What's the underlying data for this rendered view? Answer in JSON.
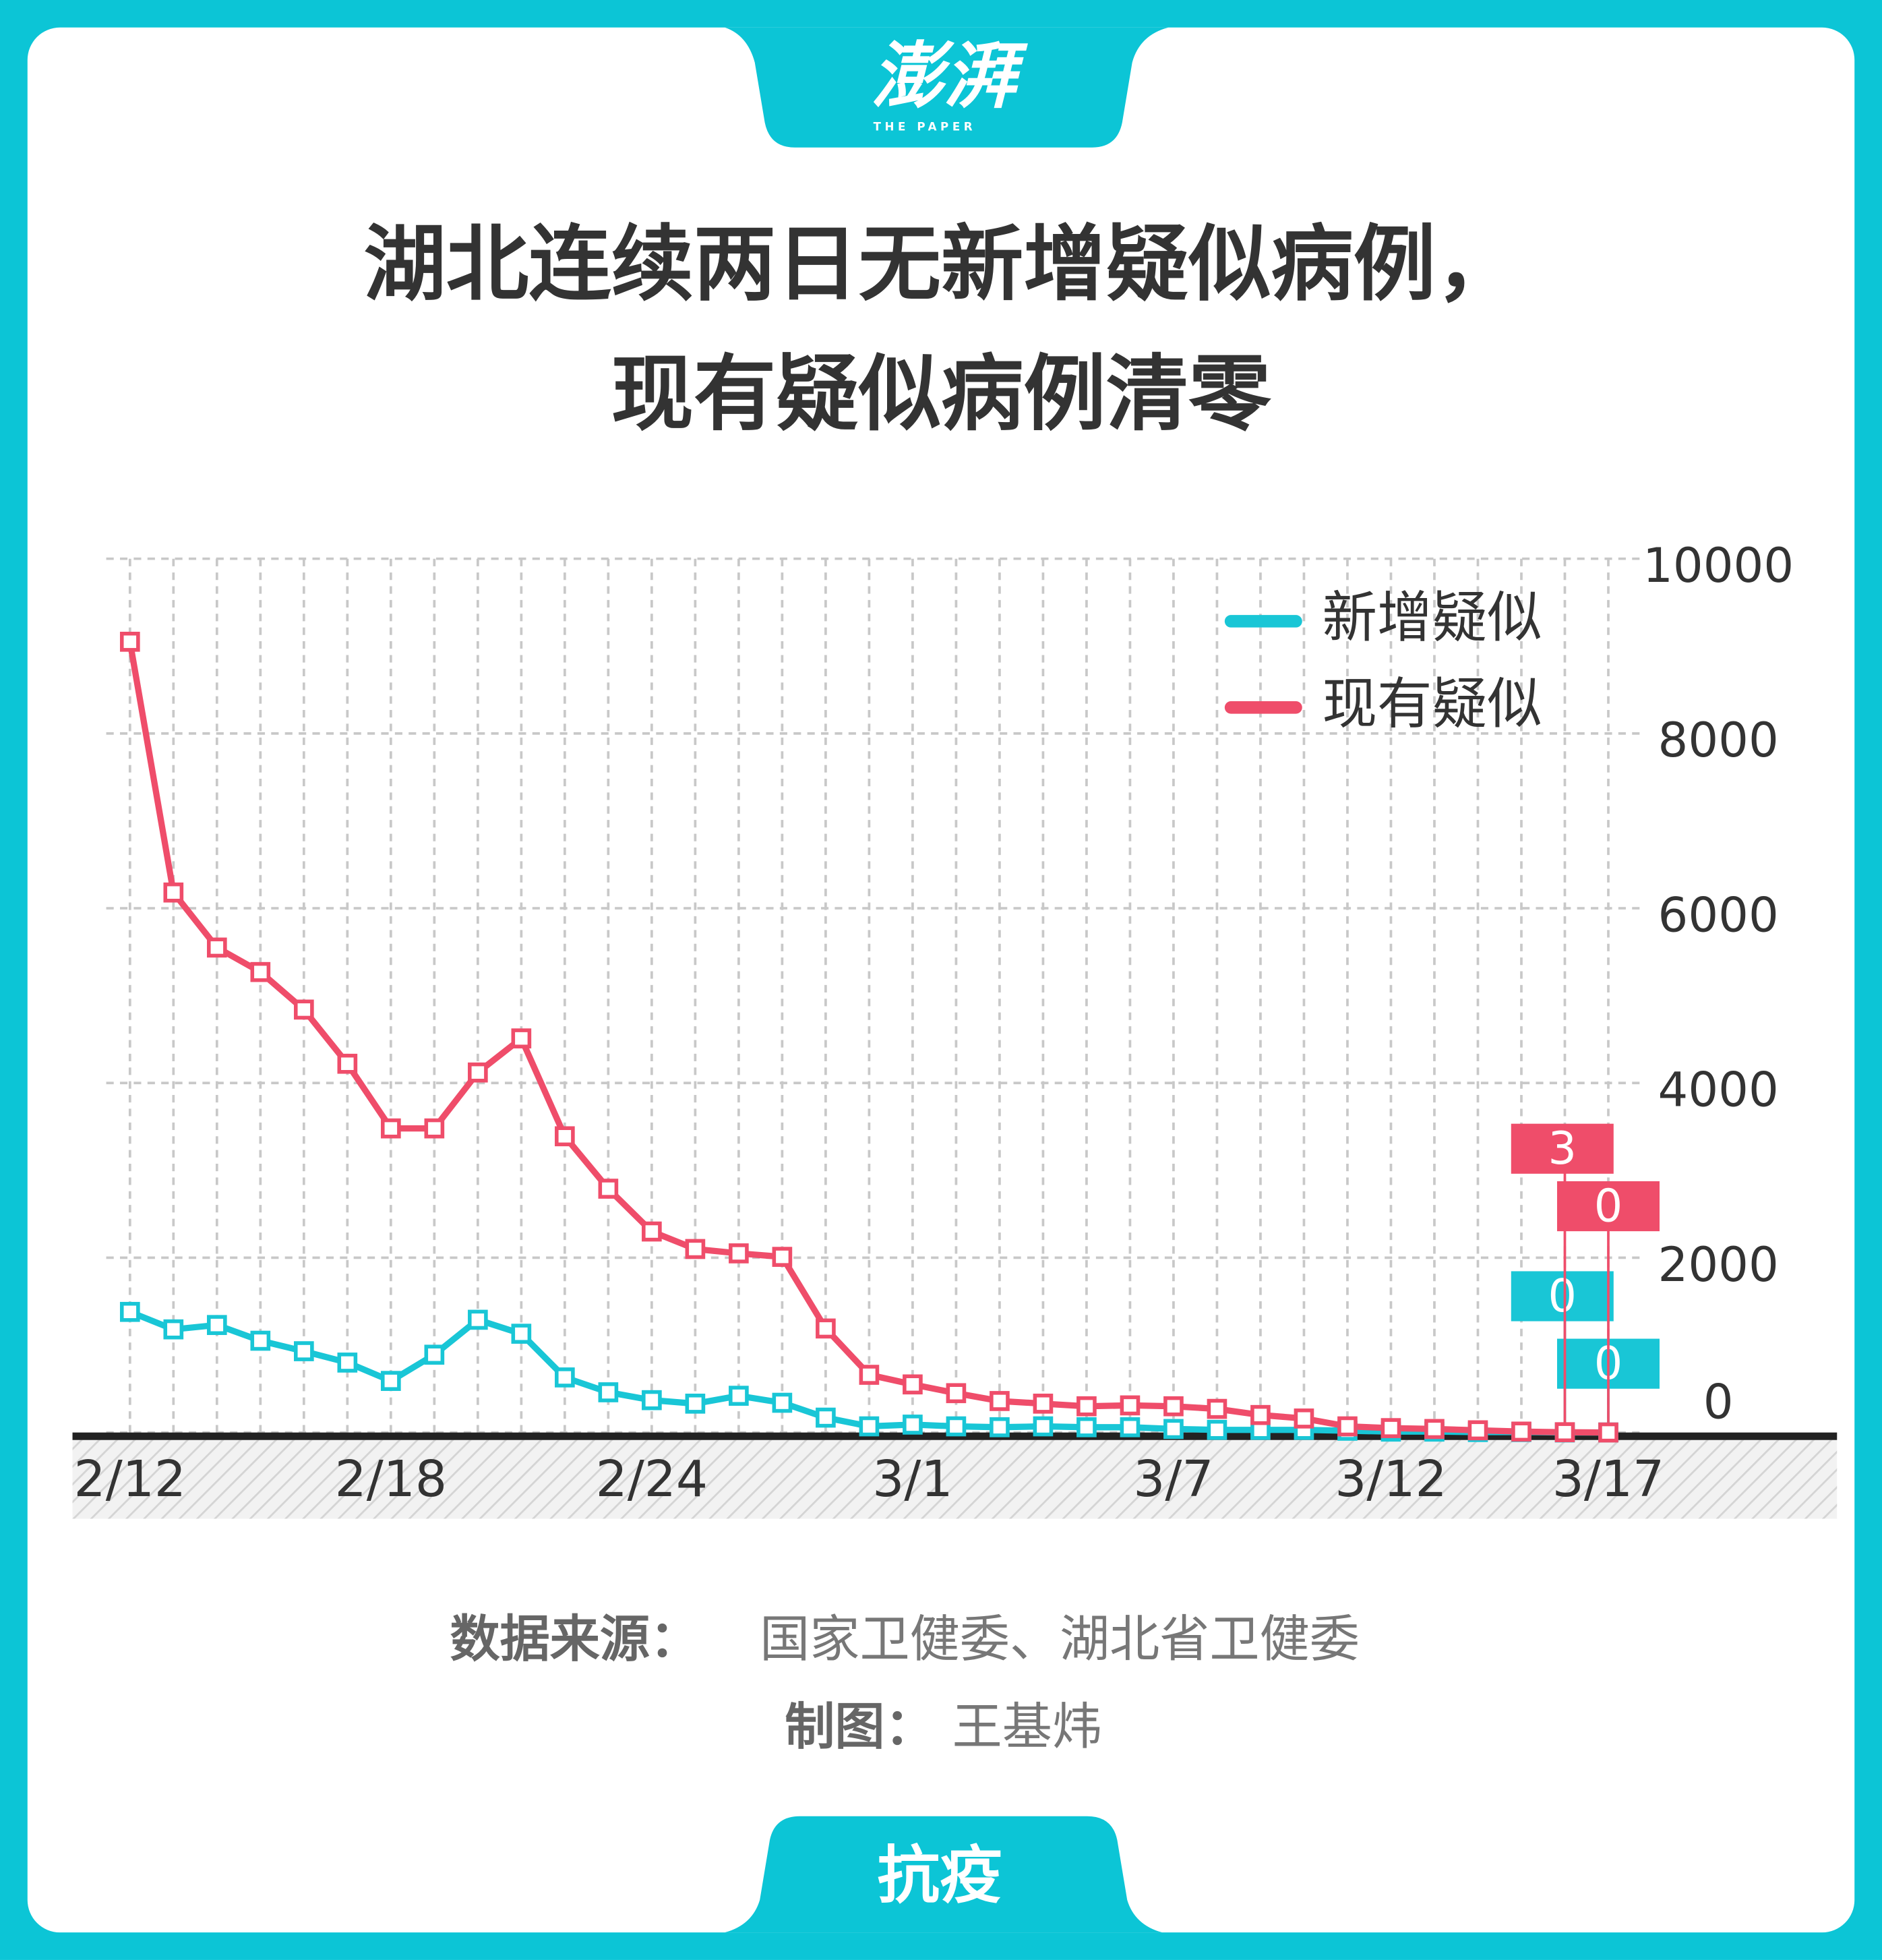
{
  "logo": {
    "name": "澎湃",
    "tagline": "THE PAPER"
  },
  "chart_data": {
    "type": "line",
    "title": "湖北连续两日无新增疑似病例，\n现有疑似病例清零",
    "categories": [
      "2/12",
      null,
      null,
      null,
      null,
      null,
      "2/18",
      null,
      null,
      null,
      null,
      null,
      "2/24",
      null,
      null,
      null,
      null,
      null,
      "3/1",
      null,
      null,
      null,
      null,
      null,
      "3/7",
      null,
      null,
      null,
      null,
      "3/12",
      null,
      null,
      null,
      null,
      "3/17"
    ],
    "series": [
      {
        "name": "新增疑似",
        "color": "#19c6d6",
        "values": [
          1380,
          1180,
          1230,
          1050,
          930,
          800,
          590,
          890,
          1290,
          1130,
          630,
          460,
          370,
          330,
          420,
          340,
          170,
          70,
          90,
          70,
          60,
          70,
          60,
          60,
          40,
          30,
          30,
          30,
          20,
          10,
          10,
          5,
          5,
          0,
          0
        ]
      },
      {
        "name": "现有疑似",
        "color": "#ef4d6a",
        "values": [
          9050,
          6180,
          5550,
          5270,
          4840,
          4220,
          3480,
          3480,
          4120,
          4510,
          3390,
          2790,
          2300,
          2100,
          2050,
          2010,
          1190,
          660,
          550,
          450,
          360,
          330,
          300,
          310,
          300,
          270,
          200,
          160,
          70,
          50,
          40,
          25,
          10,
          3,
          0
        ]
      }
    ],
    "ylim": [
      0,
      10000
    ],
    "yticks": [
      0,
      2000,
      4000,
      6000,
      8000,
      10000
    ],
    "grid": true,
    "legend": "top-right"
  },
  "source": {
    "label": "数据来源：",
    "text": "国家卫健委、湖北省卫健委"
  },
  "credit": {
    "label": "制图：",
    "text": "王基炜"
  },
  "footer": "抗疫"
}
